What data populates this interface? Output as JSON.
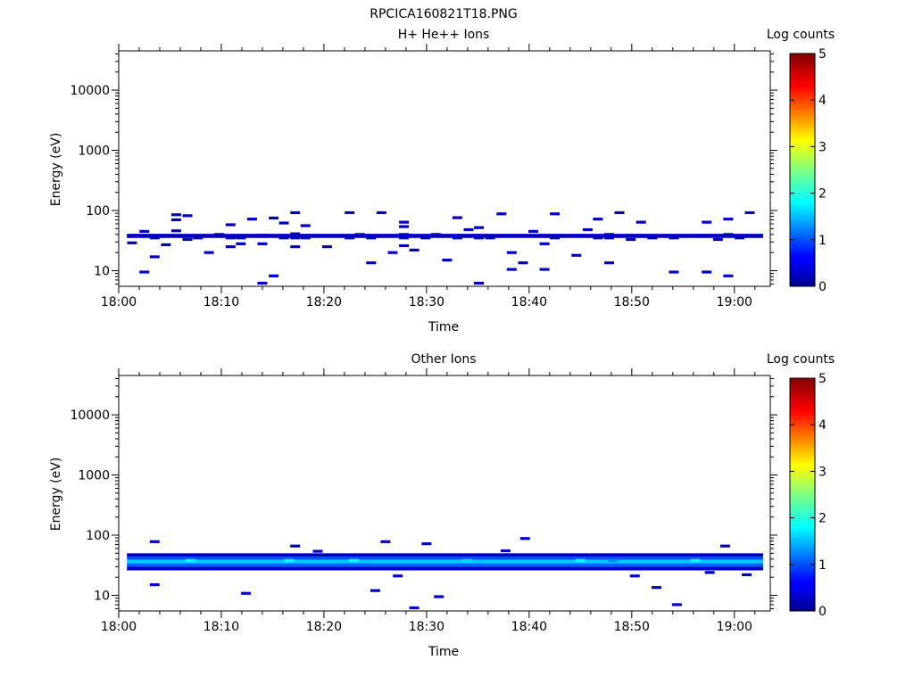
{
  "figure_title": "RPCICA160821T18.PNG",
  "colors": {
    "background": "#ffffff",
    "axis": "#000000",
    "low_band": "#0000b4"
  },
  "chart_data": [
    {
      "type": "heatmap",
      "title": "H+ He++ Ions",
      "xlabel": "Time",
      "ylabel": "Energy (eV)",
      "x_tick_labels": [
        "18:00",
        "18:10",
        "18:20",
        "18:30",
        "18:40",
        "18:50",
        "19:00"
      ],
      "y_tick_labels": [
        "10",
        "100",
        "1000",
        "10000"
      ],
      "y_scale": "log",
      "xlim_minutes": [
        0,
        63.5
      ],
      "ylim": [
        5.5,
        45000
      ],
      "colorbar": {
        "label": "Log counts",
        "range": [
          0,
          5
        ],
        "tick_labels": [
          "0",
          "1",
          "2",
          "3",
          "4",
          "5"
        ]
      },
      "band": {
        "t_start": 0.8,
        "t_end": 62.8,
        "e_low": 35,
        "e_high": 41,
        "level": 0.3
      },
      "cells": [
        {
          "t": 1.3,
          "e": 38,
          "level": 0.35
        },
        {
          "t": 1.3,
          "e": 29,
          "level": 0.3
        },
        {
          "t": 2.5,
          "e": 45,
          "level": 0.3
        },
        {
          "t": 2.5,
          "e": 9.5,
          "level": 0.4
        },
        {
          "t": 3.5,
          "e": 35,
          "level": 0.3
        },
        {
          "t": 3.5,
          "e": 17,
          "level": 0.3
        },
        {
          "t": 4.6,
          "e": 27,
          "level": 0.3
        },
        {
          "t": 5.6,
          "e": 85,
          "level": 0.3
        },
        {
          "t": 5.6,
          "e": 70,
          "level": 0.3
        },
        {
          "t": 5.6,
          "e": 46,
          "level": 0.3
        },
        {
          "t": 6.7,
          "e": 82,
          "level": 0.3
        },
        {
          "t": 6.7,
          "e": 38,
          "level": 0.3
        },
        {
          "t": 6.7,
          "e": 33,
          "level": 0.3
        },
        {
          "t": 7.7,
          "e": 35,
          "level": 0.3
        },
        {
          "t": 8.8,
          "e": 20,
          "level": 0.3
        },
        {
          "t": 9.8,
          "e": 40,
          "level": 0.3
        },
        {
          "t": 10.9,
          "e": 58,
          "level": 0.3
        },
        {
          "t": 10.9,
          "e": 35,
          "level": 0.3
        },
        {
          "t": 10.9,
          "e": 25,
          "level": 0.3
        },
        {
          "t": 11.9,
          "e": 35,
          "level": 0.35
        },
        {
          "t": 11.9,
          "e": 28,
          "level": 0.3
        },
        {
          "t": 13.0,
          "e": 72,
          "level": 0.3
        },
        {
          "t": 14.0,
          "e": 39,
          "level": 0.3
        },
        {
          "t": 14.0,
          "e": 28,
          "level": 0.3
        },
        {
          "t": 14.0,
          "e": 6.2,
          "level": 0.3
        },
        {
          "t": 15.1,
          "e": 75,
          "level": 0.3
        },
        {
          "t": 15.1,
          "e": 8.2,
          "level": 0.3
        },
        {
          "t": 16.1,
          "e": 62,
          "level": 0.3
        },
        {
          "t": 16.1,
          "e": 35,
          "level": 0.3
        },
        {
          "t": 17.2,
          "e": 92,
          "level": 0.3
        },
        {
          "t": 17.2,
          "e": 41,
          "level": 0.3
        },
        {
          "t": 17.2,
          "e": 35,
          "level": 0.3
        },
        {
          "t": 17.2,
          "e": 25,
          "level": 0.3
        },
        {
          "t": 18.2,
          "e": 56,
          "level": 0.3
        },
        {
          "t": 18.2,
          "e": 35,
          "level": 0.3
        },
        {
          "t": 20.3,
          "e": 25,
          "level": 0.3
        },
        {
          "t": 22.5,
          "e": 92,
          "level": 0.3
        },
        {
          "t": 22.5,
          "e": 35,
          "level": 0.3
        },
        {
          "t": 23.5,
          "e": 40,
          "level": 0.3
        },
        {
          "t": 24.6,
          "e": 35,
          "level": 0.3
        },
        {
          "t": 24.6,
          "e": 13.5,
          "level": 0.35
        },
        {
          "t": 25.6,
          "e": 92,
          "level": 0.3
        },
        {
          "t": 26.7,
          "e": 20,
          "level": 0.3
        },
        {
          "t": 27.8,
          "e": 64,
          "level": 0.3
        },
        {
          "t": 27.8,
          "e": 54,
          "level": 0.3
        },
        {
          "t": 27.8,
          "e": 40,
          "level": 0.4
        },
        {
          "t": 27.8,
          "e": 35,
          "level": 0.4
        },
        {
          "t": 27.8,
          "e": 26,
          "level": 0.3
        },
        {
          "t": 28.8,
          "e": 22,
          "level": 0.3
        },
        {
          "t": 29.9,
          "e": 35,
          "level": 0.3
        },
        {
          "t": 30.9,
          "e": 40,
          "level": 0.3
        },
        {
          "t": 32.0,
          "e": 15,
          "level": 0.3
        },
        {
          "t": 33.0,
          "e": 76,
          "level": 0.3
        },
        {
          "t": 33.0,
          "e": 35,
          "level": 0.3
        },
        {
          "t": 34.1,
          "e": 48,
          "level": 0.3
        },
        {
          "t": 35.1,
          "e": 52,
          "level": 0.3
        },
        {
          "t": 35.1,
          "e": 35,
          "level": 0.35
        },
        {
          "t": 35.1,
          "e": 6.2,
          "level": 0.3
        },
        {
          "t": 36.2,
          "e": 35,
          "level": 0.3
        },
        {
          "t": 37.3,
          "e": 88,
          "level": 0.3
        },
        {
          "t": 38.3,
          "e": 38,
          "level": 0.3
        },
        {
          "t": 38.3,
          "e": 20,
          "level": 0.3
        },
        {
          "t": 38.3,
          "e": 10.5,
          "level": 0.4
        },
        {
          "t": 39.4,
          "e": 13.5,
          "level": 0.35
        },
        {
          "t": 40.4,
          "e": 45,
          "level": 0.3
        },
        {
          "t": 40.4,
          "e": 38,
          "level": 0.3
        },
        {
          "t": 41.5,
          "e": 28,
          "level": 0.3
        },
        {
          "t": 41.5,
          "e": 10.5,
          "level": 0.35
        },
        {
          "t": 42.5,
          "e": 88,
          "level": 0.3
        },
        {
          "t": 42.5,
          "e": 35,
          "level": 0.3
        },
        {
          "t": 44.6,
          "e": 18,
          "level": 0.3
        },
        {
          "t": 45.7,
          "e": 48,
          "level": 0.3
        },
        {
          "t": 46.7,
          "e": 72,
          "level": 0.3
        },
        {
          "t": 46.7,
          "e": 35,
          "level": 0.3
        },
        {
          "t": 47.8,
          "e": 40,
          "level": 0.3
        },
        {
          "t": 47.8,
          "e": 35,
          "level": 0.35
        },
        {
          "t": 47.8,
          "e": 13.5,
          "level": 0.35
        },
        {
          "t": 48.8,
          "e": 92,
          "level": 0.3
        },
        {
          "t": 48.8,
          "e": 38,
          "level": 0.3
        },
        {
          "t": 49.9,
          "e": 33,
          "level": 0.3
        },
        {
          "t": 50.9,
          "e": 64,
          "level": 0.3
        },
        {
          "t": 52.0,
          "e": 35,
          "level": 0.3
        },
        {
          "t": 54.1,
          "e": 35,
          "level": 0.3
        },
        {
          "t": 54.1,
          "e": 9.5,
          "level": 0.35
        },
        {
          "t": 55.2,
          "e": 38,
          "level": 0.3
        },
        {
          "t": 57.3,
          "e": 64,
          "level": 0.3
        },
        {
          "t": 57.3,
          "e": 38,
          "level": 0.35
        },
        {
          "t": 57.3,
          "e": 9.5,
          "level": 0.35
        },
        {
          "t": 58.4,
          "e": 33,
          "level": 0.3
        },
        {
          "t": 59.4,
          "e": 72,
          "level": 0.3
        },
        {
          "t": 59.4,
          "e": 40,
          "level": 0.3
        },
        {
          "t": 59.4,
          "e": 8.2,
          "level": 0.35
        },
        {
          "t": 60.5,
          "e": 35,
          "level": 0.3
        },
        {
          "t": 61.5,
          "e": 92,
          "level": 0.3
        }
      ]
    },
    {
      "type": "heatmap",
      "title": "Other Ions",
      "xlabel": "Time",
      "ylabel": "Energy (eV)",
      "x_tick_labels": [
        "18:00",
        "18:10",
        "18:20",
        "18:30",
        "18:40",
        "18:50",
        "19:00"
      ],
      "y_tick_labels": [
        "10",
        "100",
        "1000",
        "10000"
      ],
      "y_scale": "log",
      "xlim_minutes": [
        0,
        63.5
      ],
      "ylim": [
        5.5,
        45000
      ],
      "colorbar": {
        "label": "Log counts",
        "range": [
          0,
          5
        ],
        "tick_labels": [
          "0",
          "1",
          "2",
          "3",
          "4",
          "5"
        ]
      },
      "bands": [
        {
          "t_start": 0.8,
          "t_end": 62.8,
          "e_low": 44,
          "e_high": 50,
          "level": 0.3
        },
        {
          "t_start": 0.8,
          "t_end": 62.8,
          "e_low": 39,
          "e_high": 44,
          "level": 1.0
        },
        {
          "t_start": 0.8,
          "t_end": 62.8,
          "e_low": 34,
          "e_high": 39,
          "level": 1.6
        },
        {
          "t_start": 0.8,
          "t_end": 62.8,
          "e_low": 30,
          "e_high": 34,
          "level": 1.1
        },
        {
          "t_start": 0.8,
          "t_end": 62.8,
          "e_low": 26,
          "e_high": 30,
          "level": 0.3
        }
      ],
      "cells": [
        {
          "t": 3.5,
          "e": 78,
          "level": 0.3
        },
        {
          "t": 3.5,
          "e": 15,
          "level": 0.3
        },
        {
          "t": 7.0,
          "e": 38,
          "level": 1.9
        },
        {
          "t": 12.4,
          "e": 10.8,
          "level": 0.4
        },
        {
          "t": 16.6,
          "e": 38,
          "level": 1.9
        },
        {
          "t": 17.2,
          "e": 66,
          "level": 0.3
        },
        {
          "t": 19.4,
          "e": 54,
          "level": 0.3
        },
        {
          "t": 22.9,
          "e": 38,
          "level": 1.9
        },
        {
          "t": 25.0,
          "e": 12,
          "level": 0.3
        },
        {
          "t": 26.0,
          "e": 78,
          "level": 0.3
        },
        {
          "t": 27.2,
          "e": 21,
          "level": 0.35
        },
        {
          "t": 28.8,
          "e": 6.2,
          "level": 0.35
        },
        {
          "t": 30.0,
          "e": 72,
          "level": 0.3
        },
        {
          "t": 31.2,
          "e": 9.5,
          "level": 0.35
        },
        {
          "t": 34.0,
          "e": 38,
          "level": 1.7
        },
        {
          "t": 37.7,
          "e": 55,
          "level": 0.3
        },
        {
          "t": 39.6,
          "e": 88,
          "level": 0.3
        },
        {
          "t": 45.0,
          "e": 38,
          "level": 1.9
        },
        {
          "t": 48.2,
          "e": 38,
          "level": 1.3
        },
        {
          "t": 50.3,
          "e": 21,
          "level": 0.3
        },
        {
          "t": 52.4,
          "e": 13.5,
          "level": 0.3
        },
        {
          "t": 54.4,
          "e": 7,
          "level": 0.4
        },
        {
          "t": 56.2,
          "e": 38,
          "level": 1.9
        },
        {
          "t": 57.6,
          "e": 24,
          "level": 0.3
        },
        {
          "t": 59.1,
          "e": 66,
          "level": 0.3
        },
        {
          "t": 61.2,
          "e": 22,
          "level": 0.3
        }
      ]
    }
  ]
}
